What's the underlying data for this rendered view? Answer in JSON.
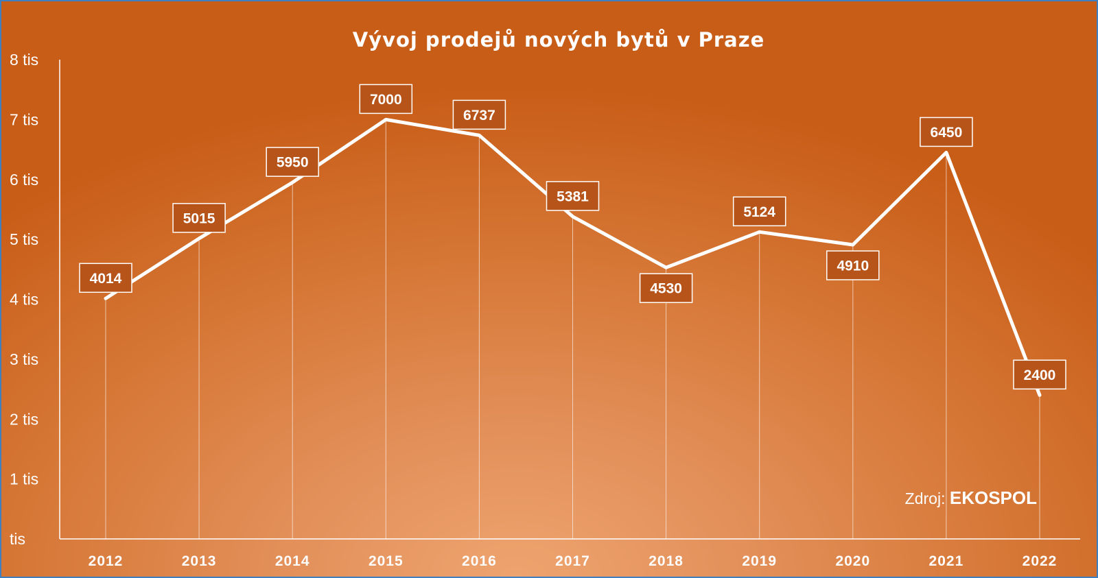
{
  "chart_data": {
    "type": "line",
    "title": "Vývoj prodejů nových bytů v Praze",
    "categories": [
      "2012",
      "2013",
      "2014",
      "2015",
      "2016",
      "2017",
      "2018",
      "2019",
      "2020",
      "2021",
      "2022"
    ],
    "values": [
      4014,
      5015,
      5950,
      7000,
      6737,
      5381,
      4530,
      5124,
      4910,
      6450,
      2400
    ],
    "data_labels": [
      "4014",
      "5015",
      "5950",
      "7000",
      "6737",
      "5381",
      "4530",
      "5124",
      "4910",
      "6450",
      "2400"
    ],
    "ylim": [
      0,
      8000
    ],
    "ytick_values": [
      0,
      1000,
      2000,
      3000,
      4000,
      5000,
      6000,
      7000,
      8000
    ],
    "ytick_labels": [
      "tis",
      "1 tis",
      "2 tis",
      "3 tis",
      "4 tis",
      "5 tis",
      "6 tis",
      "7 tis",
      "8 tis"
    ],
    "xlabel": "",
    "ylabel": "",
    "grid": false,
    "legend": "none",
    "annotation": {
      "prefix": "Zdroj: ",
      "source": "EKOSPOL"
    },
    "colors": {
      "line": "#ffffff",
      "label_box": "#b6541a",
      "background": "#d67736"
    }
  }
}
